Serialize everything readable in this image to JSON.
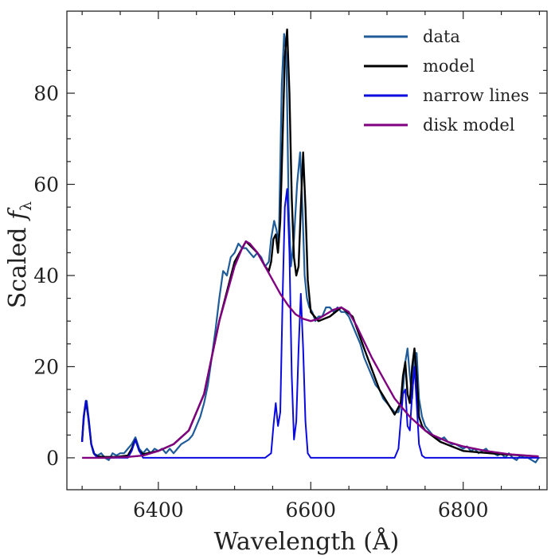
{
  "chart_data": {
    "type": "line",
    "xlabel": "Wavelength (Å)",
    "ylabel": "Scaled f_λ",
    "ylabel_main": "Scaled ",
    "ylabel_sym": "f",
    "ylabel_sub": "λ",
    "xlim": [
      6280,
      6910
    ],
    "ylim": [
      -7,
      98
    ],
    "x_ticks": [
      6400,
      6600,
      6800
    ],
    "x_tick_labels": [
      "6400",
      "6600",
      "6800"
    ],
    "y_ticks": [
      0,
      20,
      40,
      60,
      80
    ],
    "y_tick_labels": [
      "0",
      "20",
      "40",
      "60",
      "80"
    ],
    "legend_position": "top-right",
    "legend": [
      {
        "label": "data",
        "color": "#1f5c99"
      },
      {
        "label": "model",
        "color": "#000000"
      },
      {
        "label": "narrow lines",
        "color": "#0a0ae0"
      },
      {
        "label": "disk model",
        "color": "#800080"
      }
    ],
    "series": [
      {
        "name": "data",
        "color": "#1f5c99",
        "x": [
          6300,
          6303,
          6306,
          6309,
          6312,
          6315,
          6320,
          6325,
          6330,
          6335,
          6340,
          6345,
          6350,
          6355,
          6360,
          6365,
          6370,
          6375,
          6380,
          6385,
          6390,
          6395,
          6400,
          6405,
          6410,
          6415,
          6420,
          6425,
          6430,
          6435,
          6440,
          6445,
          6450,
          6455,
          6460,
          6465,
          6470,
          6475,
          6480,
          6485,
          6490,
          6495,
          6500,
          6505,
          6510,
          6515,
          6520,
          6525,
          6530,
          6535,
          6540,
          6545,
          6548,
          6552,
          6555,
          6558,
          6562,
          6565,
          6568,
          6571,
          6574,
          6578,
          6582,
          6586,
          6589,
          6592,
          6595,
          6598,
          6602,
          6606,
          6610,
          6615,
          6620,
          6625,
          6630,
          6635,
          6640,
          6645,
          6650,
          6655,
          6660,
          6665,
          6670,
          6675,
          6680,
          6685,
          6690,
          6695,
          6700,
          6705,
          6710,
          6715,
          6720,
          6724,
          6727,
          6730,
          6733,
          6736,
          6739,
          6742,
          6746,
          6750,
          6755,
          6760,
          6765,
          6770,
          6775,
          6780,
          6785,
          6790,
          6795,
          6800,
          6805,
          6810,
          6815,
          6820,
          6825,
          6830,
          6835,
          6840,
          6845,
          6850,
          6855,
          6860,
          6865,
          6870,
          6875,
          6880,
          6885,
          6890,
          6895,
          6899
        ],
        "y": [
          4,
          10,
          12.5,
          8,
          3,
          1,
          0.5,
          1,
          0,
          -0.5,
          1,
          0.5,
          1,
          1,
          2,
          3,
          4.5,
          2,
          1,
          2,
          1,
          2,
          1.5,
          2,
          1,
          2,
          1,
          2,
          3,
          3.5,
          4,
          5,
          7,
          9,
          12,
          16,
          22,
          28,
          35,
          41,
          40,
          44,
          45,
          47,
          46,
          46,
          45,
          44,
          45,
          44,
          42,
          43,
          48,
          52,
          50,
          47,
          82,
          93,
          88,
          55,
          42,
          48,
          60,
          67,
          55,
          40,
          35,
          33,
          32,
          30,
          31,
          31,
          33,
          33,
          32,
          33,
          32,
          32,
          31,
          29,
          27,
          25,
          22,
          20,
          18,
          16,
          15,
          13,
          12,
          11,
          10,
          10,
          13,
          21,
          24,
          18,
          13,
          23,
          23,
          13,
          9,
          7,
          6,
          5,
          4.5,
          4,
          4.5,
          3.5,
          3,
          3,
          2.5,
          2,
          2.5,
          1.5,
          2,
          1,
          1.5,
          2,
          1,
          1,
          0.5,
          1,
          0,
          1,
          0,
          -0.5,
          0.5,
          0,
          0,
          -0.5,
          -1,
          0
        ]
      },
      {
        "name": "model",
        "color": "#000000",
        "x": [
          6300,
          6302,
          6305,
          6308,
          6312,
          6316,
          6320,
          6330,
          6345,
          6360,
          6365,
          6370,
          6375,
          6380,
          6400,
          6420,
          6440,
          6460,
          6480,
          6500,
          6515,
          6530,
          6540,
          6545,
          6548,
          6551,
          6554,
          6557,
          6560,
          6563,
          6566,
          6569,
          6572,
          6575,
          6578,
          6581,
          6584,
          6587,
          6590,
          6593,
          6596,
          6600,
          6610,
          6625,
          6640,
          6655,
          6670,
          6690,
          6710,
          6718,
          6721,
          6724,
          6727,
          6730,
          6733,
          6736,
          6739,
          6742,
          6746,
          6750,
          6770,
          6800,
          6850,
          6899
        ],
        "y": [
          3.5,
          9,
          12.5,
          9,
          3,
          0.8,
          0.3,
          0.2,
          0.2,
          0.5,
          2,
          4,
          1.5,
          0.8,
          1.5,
          3,
          6,
          14,
          30,
          43,
          47.5,
          45,
          42,
          41,
          43,
          48,
          49,
          45,
          52,
          70,
          88,
          94,
          80,
          57,
          44,
          40,
          42,
          55,
          67,
          55,
          39,
          32,
          30,
          31,
          33,
          31,
          24,
          15,
          9.5,
          12,
          18,
          21,
          14,
          12,
          20,
          24,
          18,
          9,
          7,
          6,
          3.5,
          1.5,
          0.8,
          0.3
        ]
      },
      {
        "name": "narrow lines",
        "color": "#0a0ae0",
        "x": [
          6300,
          6302,
          6305,
          6308,
          6312,
          6316,
          6320,
          6330,
          6360,
          6365,
          6370,
          6375,
          6380,
          6400,
          6540,
          6548,
          6551,
          6554,
          6557,
          6560,
          6563,
          6566,
          6569,
          6572,
          6575,
          6578,
          6581,
          6584,
          6587,
          6590,
          6593,
          6596,
          6600,
          6700,
          6710,
          6715,
          6718,
          6721,
          6724,
          6727,
          6730,
          6733,
          6736,
          6739,
          6742,
          6746,
          6750,
          6900
        ],
        "y": [
          3.5,
          9,
          12.5,
          9,
          3,
          0.8,
          0,
          0,
          0,
          1.5,
          4,
          1.5,
          0,
          0,
          0,
          1,
          7,
          12,
          7,
          10,
          35,
          55,
          59,
          45,
          18,
          4,
          8,
          24,
          36,
          24,
          8,
          1,
          0,
          0,
          0,
          2,
          8,
          14,
          15,
          7,
          6,
          14,
          20,
          12,
          3,
          0.5,
          0,
          0
        ]
      },
      {
        "name": "disk model",
        "color": "#800080",
        "x": [
          6300,
          6330,
          6360,
          6380,
          6400,
          6420,
          6440,
          6460,
          6480,
          6500,
          6510,
          6515,
          6520,
          6530,
          6540,
          6550,
          6560,
          6570,
          6580,
          6590,
          6600,
          6610,
          6620,
          6630,
          6640,
          6650,
          6660,
          6670,
          6680,
          6690,
          6700,
          6710,
          6720,
          6730,
          6740,
          6750,
          6760,
          6780,
          6800,
          6830,
          6860,
          6899
        ],
        "y": [
          0,
          0,
          0.2,
          0.5,
          1.5,
          3,
          6,
          14,
          30,
          42,
          46,
          47.5,
          47,
          45,
          42,
          39,
          36,
          33.5,
          31.5,
          30.5,
          30,
          30.5,
          31.5,
          32.5,
          33,
          32,
          29,
          25.5,
          22,
          19,
          16,
          13,
          11,
          9,
          7.5,
          6,
          5,
          3.5,
          2.5,
          1.5,
          0.8,
          0.3
        ]
      }
    ]
  }
}
